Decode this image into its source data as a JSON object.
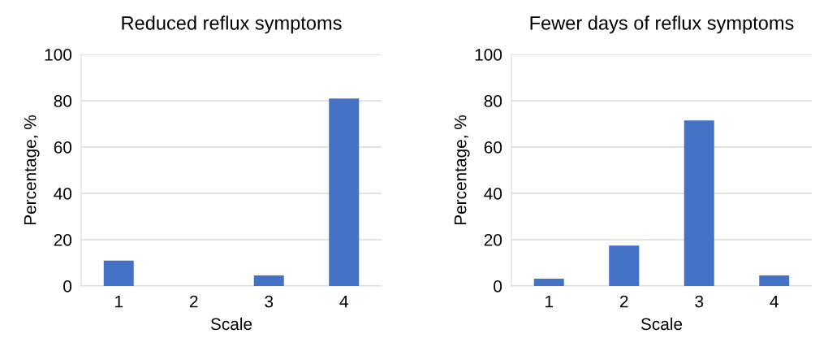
{
  "chart_data": [
    {
      "type": "bar",
      "title": "Reduced reflux symptoms",
      "xlabel": "Scale",
      "ylabel": "Percentage, %",
      "categories": [
        "1",
        "2",
        "3",
        "4"
      ],
      "values": [
        11,
        0,
        4.6,
        81
      ],
      "color": "#4472c4",
      "ylim": [
        0,
        100
      ],
      "yticks": [
        0,
        20,
        40,
        60,
        80,
        100
      ],
      "grid": "y",
      "legend": false
    },
    {
      "type": "bar",
      "title": "Fewer days of reflux symptoms",
      "xlabel": "Scale",
      "ylabel": "Percentage, %",
      "categories": [
        "1",
        "2",
        "3",
        "4"
      ],
      "values": [
        3.2,
        17.5,
        71.5,
        4.6
      ],
      "color": "#4472c4",
      "ylim": [
        0,
        100
      ],
      "yticks": [
        0,
        20,
        40,
        60,
        80,
        100
      ],
      "grid": "y",
      "legend": false
    }
  ]
}
